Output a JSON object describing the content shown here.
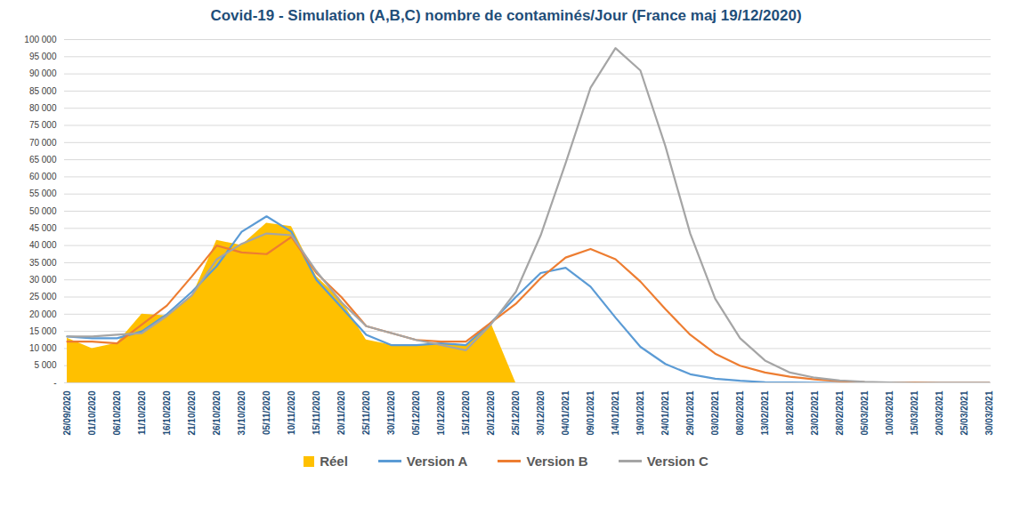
{
  "chart_data": {
    "type": "line",
    "title": "Covid-19 - Simulation (A,B,C) nombre de contaminés/Jour (France maj 19/12/2020)",
    "categories": [
      "26/09/2020",
      "01/10/2020",
      "06/10/2020",
      "11/10/2020",
      "16/10/2020",
      "21/10/2020",
      "26/10/2020",
      "31/10/2020",
      "05/11/2020",
      "10/11/2020",
      "15/11/2020",
      "20/11/2020",
      "25/11/2020",
      "30/11/2020",
      "05/12/2020",
      "10/12/2020",
      "15/12/2020",
      "20/12/2020",
      "25/12/2020",
      "30/12/2020",
      "04/01/2021",
      "09/01/2021",
      "14/01/2021",
      "19/01/2021",
      "24/01/2021",
      "29/01/2021",
      "03/02/2021",
      "08/02/2021",
      "13/02/2021",
      "18/02/2021",
      "23/02/2021",
      "28/02/2021",
      "05/03/2021",
      "10/03/2021",
      "15/03/2021",
      "20/03/2021",
      "25/03/2021",
      "30/03/2021"
    ],
    "series": [
      {
        "name": "Réel",
        "type": "area",
        "color": "#FFC000",
        "values": [
          13000,
          10000,
          11500,
          20000,
          19500,
          25000,
          41500,
          40000,
          46500,
          45500,
          31000,
          24000,
          12500,
          11000,
          11000,
          11500,
          11000,
          17500,
          null,
          null,
          null,
          null,
          null,
          null,
          null,
          null,
          null,
          null,
          null,
          null,
          null,
          null,
          null,
          null,
          null,
          null,
          null,
          null
        ]
      },
      {
        "name": "Version A",
        "type": "line",
        "color": "#5B9BD5",
        "values": [
          13500,
          13000,
          13000,
          15000,
          20000,
          26500,
          34000,
          44000,
          48500,
          44000,
          30000,
          22000,
          14000,
          11000,
          11000,
          11500,
          11000,
          17500,
          25000,
          32000,
          33500,
          28000,
          19000,
          10500,
          5500,
          2500,
          1200,
          600,
          200,
          100,
          50,
          0,
          0,
          0,
          0,
          0,
          0,
          0
        ]
      },
      {
        "name": "Version B",
        "type": "line",
        "color": "#ED7D31",
        "values": [
          12000,
          12000,
          11500,
          17000,
          22500,
          31000,
          40000,
          38000,
          37500,
          42500,
          32000,
          25000,
          16500,
          14500,
          12500,
          12000,
          12000,
          17500,
          23000,
          30500,
          36500,
          39000,
          36000,
          29500,
          21500,
          14000,
          8500,
          5000,
          3000,
          1800,
          1000,
          500,
          200,
          100,
          100,
          0,
          0,
          0
        ]
      },
      {
        "name": "Version C",
        "type": "line",
        "color": "#A5A5A5",
        "values": [
          13500,
          13500,
          14000,
          14500,
          19500,
          25500,
          36000,
          40500,
          43500,
          43000,
          32500,
          23500,
          16500,
          14500,
          12500,
          11000,
          9500,
          17000,
          26500,
          43000,
          64000,
          86000,
          97500,
          91000,
          69000,
          43500,
          24500,
          13000,
          6500,
          3000,
          1500,
          700,
          300,
          100,
          0,
          0,
          0,
          0
        ]
      }
    ],
    "ylim": [
      0,
      100000
    ],
    "yticks": [
      {
        "value": 0,
        "label": "-"
      },
      {
        "value": 5000,
        "label": "5 000"
      },
      {
        "value": 10000,
        "label": "10 000"
      },
      {
        "value": 15000,
        "label": "15 000"
      },
      {
        "value": 20000,
        "label": "20 000"
      },
      {
        "value": 25000,
        "label": "25 000"
      },
      {
        "value": 30000,
        "label": "30 000"
      },
      {
        "value": 35000,
        "label": "35 000"
      },
      {
        "value": 40000,
        "label": "40 000"
      },
      {
        "value": 45000,
        "label": "45 000"
      },
      {
        "value": 50000,
        "label": "50 000"
      },
      {
        "value": 55000,
        "label": "55 000"
      },
      {
        "value": 60000,
        "label": "60 000"
      },
      {
        "value": 65000,
        "label": "65 000"
      },
      {
        "value": 70000,
        "label": "70 000"
      },
      {
        "value": 75000,
        "label": "75 000"
      },
      {
        "value": 80000,
        "label": "80 000"
      },
      {
        "value": 85000,
        "label": "85 000"
      },
      {
        "value": 90000,
        "label": "90 000"
      },
      {
        "value": 95000,
        "label": "95 000"
      },
      {
        "value": 100000,
        "label": "100 000"
      }
    ],
    "grid": true,
    "legend": "bottom"
  }
}
